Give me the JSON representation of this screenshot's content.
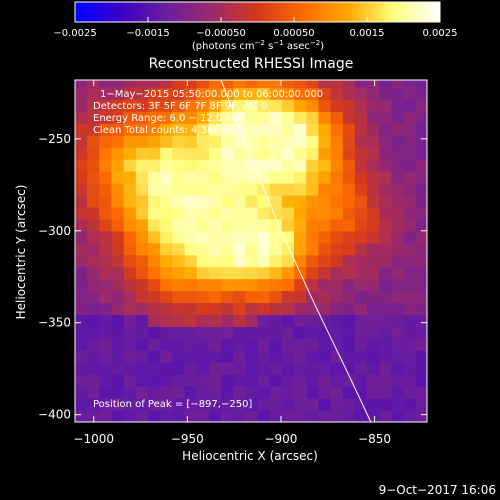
{
  "chart_data": {
    "type": "heatmap",
    "title": "Reconstructed RHESSI Image",
    "xlabel": "Heliocentric X (arcsec)",
    "ylabel": "Heliocentric Y (arcsec)",
    "xlim": [
      -1010,
      -822
    ],
    "ylim": [
      -404,
      -218
    ],
    "x_ticks": [
      -1000,
      -950,
      -900,
      -850
    ],
    "y_ticks": [
      -400,
      -350,
      -300,
      -250
    ],
    "x_tick_labels": [
      "−1000",
      "−950",
      "−900",
      "−850"
    ],
    "y_tick_labels": [
      "−400",
      "−350",
      "−300",
      "−250"
    ],
    "colorbar": {
      "range": [
        -0.0025,
        0.0025
      ],
      "ticks": [
        -0.0025,
        -0.0015,
        -0.0005,
        0.0005,
        0.0015,
        0.0025
      ],
      "tick_labels": [
        "−0.0025",
        "−0.0015",
        "−0.00050",
        "0.00050",
        "0.0015",
        "0.0025"
      ],
      "units_parts": [
        "(photons cm",
        "−2",
        " s",
        "−1",
        " asec",
        "−2",
        ")"
      ],
      "colormap": [
        "#0000ff",
        "#3a00c8",
        "#6a1e9e",
        "#9b2a6a",
        "#d23a1e",
        "#ff6a00",
        "#ffaa00",
        "#ffff80",
        "#ffffff"
      ]
    },
    "annotations": [
      "1−May−2015 05:50:00.000 to 06:00:00.000",
      "Detectors: 3F 5F 6F 7F 8F 9F, Att 0",
      "Energy Range: 6.0 − 12.0 keV",
      "Clean     Total counts: 4.38E+04"
    ],
    "peak_label": "Position of Peak = [−897,−250]",
    "peak": [
      -897,
      -250
    ],
    "sources": [
      {
        "x": -897,
        "y": -250,
        "amp": 1.0,
        "sigma": 22
      },
      {
        "x": -945,
        "y": -282,
        "amp": 0.72,
        "sigma": 28
      },
      {
        "x": -908,
        "y": -312,
        "amp": 0.78,
        "sigma": 18
      },
      {
        "x": -980,
        "y": -262,
        "amp": 0.5,
        "sigma": 25
      },
      {
        "x": -950,
        "y": -318,
        "amp": 0.45,
        "sigma": 22
      },
      {
        "x": -868,
        "y": -292,
        "amp": 0.4,
        "sigma": 20
      },
      {
        "x": -930,
        "y": -232,
        "amp": 0.42,
        "sigma": 20
      }
    ],
    "limb_line": [
      [
        -932,
        -218
      ],
      [
        -916,
        -260
      ],
      [
        -900,
        -300
      ],
      [
        -882,
        -340
      ],
      [
        -864,
        -378
      ],
      [
        -852,
        -404
      ]
    ]
  },
  "footer": {
    "date": "9−Oct−2017 16:06"
  }
}
